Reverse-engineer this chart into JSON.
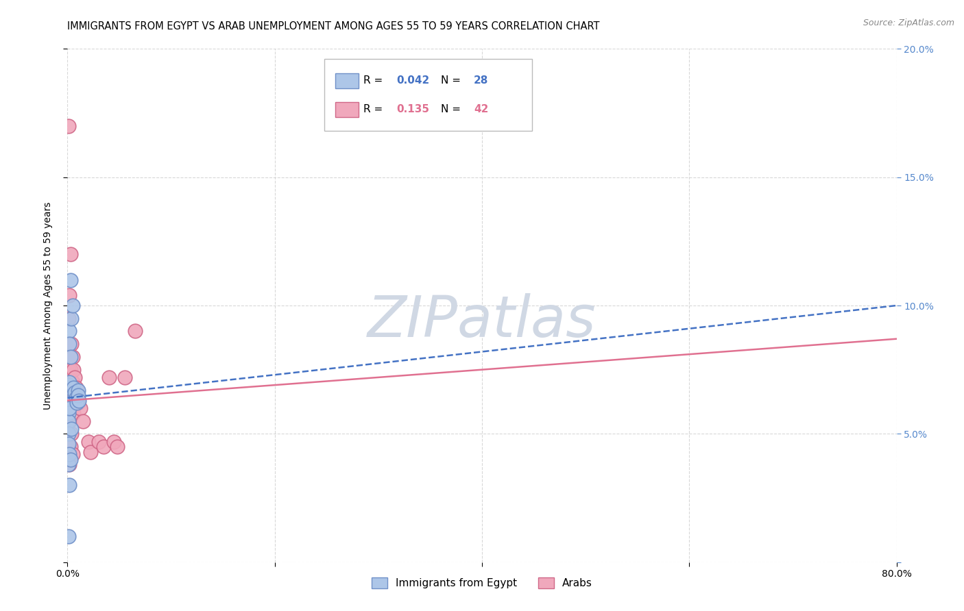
{
  "title": "IMMIGRANTS FROM EGYPT VS ARAB UNEMPLOYMENT AMONG AGES 55 TO 59 YEARS CORRELATION CHART",
  "source": "Source: ZipAtlas.com",
  "ylabel": "Unemployment Among Ages 55 to 59 years",
  "xlim": [
    0.0,
    0.8
  ],
  "ylim": [
    0.0,
    0.2
  ],
  "xtick_vals": [
    0.0,
    0.2,
    0.4,
    0.6,
    0.8
  ],
  "xtick_labels": [
    "0.0%",
    "",
    "",
    "",
    "80.0%"
  ],
  "ytick_vals": [
    0.0,
    0.05,
    0.1,
    0.15,
    0.2
  ],
  "ytick_labels_left": [
    "",
    "",
    "",
    "",
    ""
  ],
  "ytick_labels_right": [
    "",
    "5.0%",
    "10.0%",
    "15.0%",
    "20.0%"
  ],
  "egypt_line_start": 0.064,
  "egypt_line_end": 0.1,
  "arab_line_start": 0.063,
  "arab_line_end": 0.087,
  "egypt_line_color": "#4472c4",
  "arab_line_color": "#e07090",
  "egypt_marker_face": "#adc6e8",
  "egypt_marker_edge": "#7090c8",
  "arab_marker_face": "#f0a8bc",
  "arab_marker_edge": "#d06888",
  "background_color": "#ffffff",
  "grid_color": "#d8d8d8",
  "watermark_color": "#d0d8e4",
  "right_tick_color": "#5588cc",
  "title_fontsize": 10.5,
  "axis_label_fontsize": 10,
  "tick_fontsize": 10,
  "legend_R1": "0.042",
  "legend_N1": "28",
  "legend_R2": "0.135",
  "legend_N2": "42",
  "legend_label1": "Immigrants from Egypt",
  "legend_label2": "Arabs",
  "egypt_x": [
    0.001,
    0.001,
    0.001,
    0.001,
    0.001,
    0.001,
    0.001,
    0.001,
    0.001,
    0.002,
    0.002,
    0.002,
    0.002,
    0.002,
    0.002,
    0.003,
    0.003,
    0.003,
    0.004,
    0.004,
    0.005,
    0.006,
    0.007,
    0.008,
    0.009,
    0.01,
    0.01,
    0.011
  ],
  "egypt_y": [
    0.069,
    0.068,
    0.062,
    0.058,
    0.055,
    0.05,
    0.046,
    0.038,
    0.01,
    0.09,
    0.085,
    0.07,
    0.06,
    0.042,
    0.03,
    0.11,
    0.08,
    0.04,
    0.095,
    0.052,
    0.1,
    0.068,
    0.066,
    0.064,
    0.062,
    0.067,
    0.065,
    0.063
  ],
  "arab_x": [
    0.001,
    0.001,
    0.001,
    0.001,
    0.001,
    0.001,
    0.001,
    0.001,
    0.001,
    0.002,
    0.002,
    0.002,
    0.002,
    0.002,
    0.003,
    0.003,
    0.003,
    0.003,
    0.004,
    0.004,
    0.004,
    0.005,
    0.005,
    0.005,
    0.005,
    0.006,
    0.006,
    0.007,
    0.008,
    0.009,
    0.01,
    0.012,
    0.015,
    0.02,
    0.022,
    0.03,
    0.035,
    0.04,
    0.045,
    0.048,
    0.055,
    0.065
  ],
  "arab_y": [
    0.17,
    0.095,
    0.075,
    0.07,
    0.065,
    0.06,
    0.05,
    0.045,
    0.04,
    0.104,
    0.08,
    0.068,
    0.055,
    0.038,
    0.12,
    0.075,
    0.06,
    0.045,
    0.085,
    0.068,
    0.05,
    0.08,
    0.07,
    0.065,
    0.042,
    0.075,
    0.058,
    0.072,
    0.068,
    0.065,
    0.062,
    0.06,
    0.055,
    0.047,
    0.043,
    0.047,
    0.045,
    0.072,
    0.047,
    0.045,
    0.072,
    0.09
  ]
}
